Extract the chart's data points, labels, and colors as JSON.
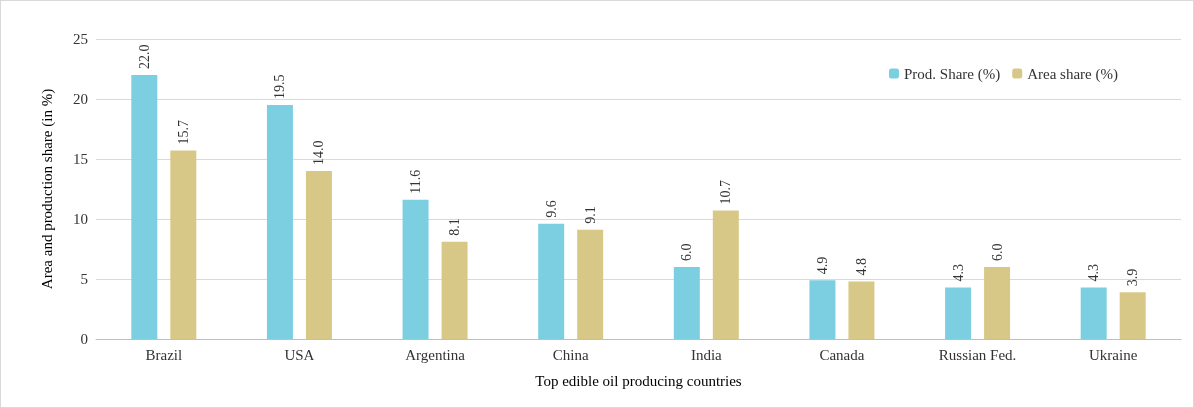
{
  "chart_data": {
    "type": "bar",
    "xlabel": "Top edible oil producing countries",
    "ylabel": "Area and production share (in %)",
    "categories": [
      "Brazil",
      "USA",
      "Argentina",
      "China",
      "India",
      "Canada",
      "Russian Fed.",
      "Ukraine"
    ],
    "series": [
      {
        "name": "Prod. Share (%)",
        "color": "#7ccfe0",
        "values": [
          22.0,
          19.5,
          11.6,
          9.6,
          6.0,
          4.9,
          4.3,
          4.3
        ]
      },
      {
        "name": "Area share (%)",
        "color": "#d8c888",
        "values": [
          15.7,
          14.0,
          8.1,
          9.1,
          10.7,
          4.8,
          6.0,
          3.9
        ]
      }
    ],
    "value_labels": [
      [
        "22.0",
        "19.5",
        "11.6",
        "9.6",
        "6.0",
        "4.9",
        "4.3",
        "4.3"
      ],
      [
        "15.7",
        "14.0",
        "8.1",
        "9.1",
        "10.7",
        "4.8",
        "6.0",
        "3.9"
      ]
    ],
    "ylim": [
      0,
      25
    ],
    "yticks": [
      0,
      5,
      10,
      15,
      20,
      25
    ],
    "grid": "y",
    "legend": "top right"
  }
}
